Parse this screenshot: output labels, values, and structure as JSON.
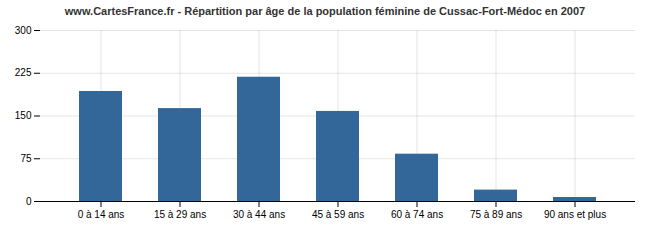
{
  "chart_data": {
    "type": "bar",
    "title": "www.CartesFrance.fr - Répartition par âge de la population féminine de Cussac-Fort-Médoc en 2007",
    "categories": [
      "0 à 14 ans",
      "15 à 29 ans",
      "30 à 44 ans",
      "45 à 59 ans",
      "60 à 74 ans",
      "75 à 89 ans",
      "90 ans et plus"
    ],
    "values": [
      193,
      163,
      218,
      158,
      83,
      20,
      7
    ],
    "color": "#336699",
    "ylim": [
      0,
      300
    ],
    "yticks": [
      0,
      75,
      150,
      225,
      300
    ],
    "grid": true
  }
}
